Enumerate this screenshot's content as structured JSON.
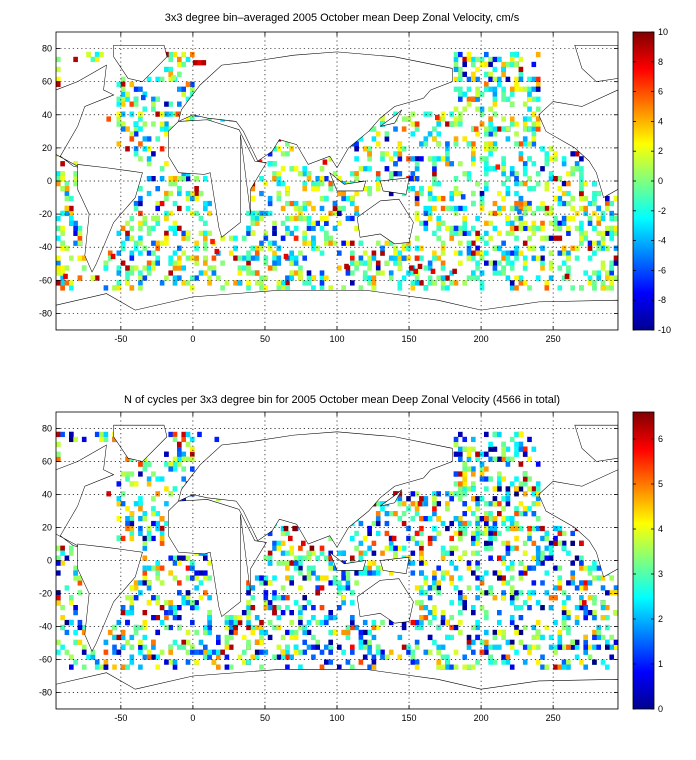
{
  "chart_data": [
    {
      "type": "heatmap",
      "title": "3x3 degree bin–averaged 2005 October mean Deep Zonal Velocity, cm/s",
      "xlabel": "",
      "ylabel": "",
      "xlim": [
        -95,
        295
      ],
      "ylim": [
        -90,
        90
      ],
      "xticks": [
        -50,
        0,
        50,
        100,
        150,
        200,
        250
      ],
      "yticks": [
        -80,
        -60,
        -40,
        -20,
        0,
        20,
        40,
        60,
        80
      ],
      "grid": true,
      "colormap": "jet",
      "clim": [
        -10,
        10
      ],
      "colorbar_ticks": [
        -10,
        -8,
        -6,
        -4,
        -2,
        0,
        2,
        4,
        6,
        8,
        10
      ],
      "bin_size_deg": 3,
      "values": [
        {
          "lon": 0,
          "lat": 70,
          "v": 9
        },
        {
          "lon": 3,
          "lat": 70,
          "v": 8
        },
        {
          "lon": 6,
          "lat": 70,
          "v": 9
        },
        {
          "lon": -15,
          "lat": 61,
          "v": 1
        },
        {
          "lon": -36,
          "lat": 49,
          "v": -6
        },
        {
          "lon": 90,
          "lat": 10,
          "v": 8
        },
        {
          "lon": 45,
          "lat": 10,
          "v": 7
        },
        {
          "lon": 105,
          "lat": -53,
          "v": 9
        },
        {
          "lon": 63,
          "lat": -47,
          "v": 8
        },
        {
          "lon": 150,
          "lat": -54,
          "v": 9
        },
        {
          "lon": 153,
          "lat": -56,
          "v": 8
        },
        {
          "lon": 156,
          "lat": -53,
          "v": 9
        },
        {
          "lon": 165,
          "lat": -56,
          "v": 8
        },
        {
          "lon": 180,
          "lat": -56,
          "v": 9
        },
        {
          "lon": 258,
          "lat": -59,
          "v": 9
        },
        {
          "lon": -90,
          "lat": -59,
          "v": 8
        },
        {
          "lon": 12,
          "lat": -38,
          "v": 7
        },
        {
          "lon": 15,
          "lat": -44,
          "v": 8
        },
        {
          "lon": -57,
          "lat": -47,
          "v": 8
        },
        {
          "lon": 210,
          "lat": 7,
          "v": 7
        },
        {
          "lon": 195,
          "lat": 30,
          "v": 6
        },
        {
          "lon": 168,
          "lat": 37,
          "v": 7
        },
        {
          "lon": -60,
          "lat": 36,
          "v": 6
        },
        {
          "lon": -12,
          "lat": 39,
          "v": 6
        },
        {
          "lon": 150,
          "lat": 0,
          "v": -7
        },
        {
          "lon": 186,
          "lat": -11,
          "v": -6
        },
        {
          "lon": 225,
          "lat": -20,
          "v": -5
        }
      ],
      "fill": {
        "type": "random-jet-bins",
        "seed": 17,
        "count": 1700,
        "vmin": -10,
        "vmax": 10,
        "center": 0.48,
        "spread": 0.22
      }
    },
    {
      "type": "heatmap",
      "title": "N of cycles per 3x3 degree bin for 2005 October mean Deep Zonal Velocity (4566 in total)",
      "xlabel": "",
      "ylabel": "",
      "xlim": [
        -95,
        295
      ],
      "ylim": [
        -90,
        90
      ],
      "xticks": [
        -50,
        0,
        50,
        100,
        150,
        200,
        250
      ],
      "yticks": [
        -80,
        -60,
        -40,
        -20,
        0,
        20,
        40,
        60,
        80
      ],
      "grid": true,
      "colormap": "jet",
      "clim": [
        0,
        6.6
      ],
      "colorbar_ticks": [
        0,
        1,
        2,
        3,
        4,
        5,
        6
      ],
      "bin_size_deg": 3,
      "total_cycles": 4566,
      "values": [
        {
          "lon": 63,
          "lat": 18,
          "v": 6.6
        },
        {
          "lon": 66,
          "lat": 12,
          "v": 6
        },
        {
          "lon": 69,
          "lat": 18,
          "v": 6.6
        },
        {
          "lon": 75,
          "lat": 9,
          "v": 6
        },
        {
          "lon": 81,
          "lat": 6,
          "v": 6.6
        },
        {
          "lon": -60,
          "lat": 39,
          "v": 6
        },
        {
          "lon": -90,
          "lat": 36,
          "v": 6.6
        },
        {
          "lon": 156,
          "lat": 33,
          "v": 6
        },
        {
          "lon": 138,
          "lat": 12,
          "v": 6
        },
        {
          "lon": 15,
          "lat": 72,
          "v": 1
        },
        {
          "lon": 3,
          "lat": 75,
          "v": 1
        },
        {
          "lon": 270,
          "lat": -27,
          "v": 6
        }
      ],
      "fill": {
        "type": "random-jet-bins",
        "seed": 29,
        "count": 1700,
        "vmin": 0,
        "vmax": 6.6,
        "center": 0.42,
        "spread": 0.3
      }
    }
  ],
  "colors": {
    "land": "#ffffff",
    "ocean": "#ffffff",
    "frame": "#000000"
  }
}
